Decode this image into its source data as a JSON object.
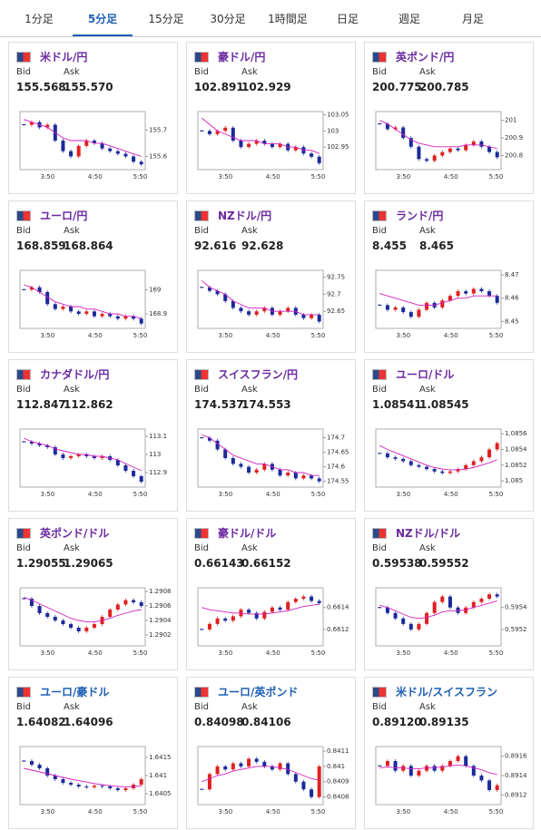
{
  "tabs": [
    "1分足",
    "5分足",
    "15分足",
    "30分足",
    "1時間足",
    "日足",
    "週足",
    "月足"
  ],
  "bid_label": "Bid",
  "ask_label": "Ask",
  "x_labels": [
    "3:50",
    "4:50",
    "5:50"
  ],
  "cards": [
    {
      "pair": "米ドル/円",
      "bid": "155.568",
      "ask": "155.570",
      "yticks": [
        155.6,
        155.7
      ],
      "ylim": [
        155.55,
        155.77
      ],
      "closes": [
        155.72,
        155.73,
        155.71,
        155.72,
        155.66,
        155.62,
        155.6,
        155.64,
        155.66,
        155.65,
        155.63,
        155.62,
        155.61,
        155.6,
        155.58,
        155.57
      ],
      "ma": [
        155.74,
        155.73,
        155.72,
        155.71,
        155.69,
        155.67,
        155.66,
        155.66,
        155.66,
        155.65,
        155.65,
        155.64,
        155.63,
        155.62,
        155.61,
        155.6
      ]
    },
    {
      "pair": "豪ドル/円",
      "bid": "102.891",
      "ask": "102.929",
      "yticks": [
        102.95,
        103,
        103.05
      ],
      "ylim": [
        102.88,
        103.06
      ],
      "closes": [
        103,
        102.99,
        103,
        103.01,
        102.97,
        102.95,
        102.96,
        102.97,
        102.96,
        102.95,
        102.96,
        102.94,
        102.95,
        102.93,
        102.92,
        102.9
      ],
      "ma": [
        103.04,
        103.02,
        103,
        102.99,
        102.98,
        102.97,
        102.97,
        102.97,
        102.96,
        102.96,
        102.96,
        102.95,
        102.95,
        102.94,
        102.94,
        102.93
      ]
    },
    {
      "pair": "英ポンド/円",
      "bid": "200.775",
      "ask": "200.785",
      "yticks": [
        200.8,
        200.9,
        201
      ],
      "ylim": [
        200.72,
        201.05
      ],
      "closes": [
        200.98,
        200.95,
        200.96,
        200.9,
        200.85,
        200.78,
        200.77,
        200.8,
        200.82,
        200.84,
        200.83,
        200.86,
        200.88,
        200.85,
        200.82,
        200.79
      ],
      "ma": [
        201,
        200.98,
        200.95,
        200.92,
        200.89,
        200.87,
        200.86,
        200.85,
        200.85,
        200.85,
        200.85,
        200.86,
        200.86,
        200.86,
        200.85,
        200.84
      ]
    },
    {
      "pair": "ユーロ/円",
      "bid": "168.859",
      "ask": "168.864",
      "yticks": [
        168.9,
        169
      ],
      "ylim": [
        168.84,
        169.08
      ],
      "closes": [
        169,
        169.01,
        168.99,
        168.94,
        168.92,
        168.93,
        168.91,
        168.9,
        168.91,
        168.89,
        168.9,
        168.89,
        168.88,
        168.89,
        168.88,
        168.86
      ],
      "ma": [
        169.02,
        169.01,
        168.99,
        168.97,
        168.95,
        168.94,
        168.93,
        168.93,
        168.92,
        168.92,
        168.91,
        168.9,
        168.9,
        168.89,
        168.89,
        168.88
      ]
    },
    {
      "pair": "NZドル/円",
      "bid": "92.616",
      "ask": "92.628",
      "yticks": [
        92.65,
        92.7,
        92.75
      ],
      "ylim": [
        92.6,
        92.77
      ],
      "closes": [
        92.72,
        92.71,
        92.7,
        92.68,
        92.66,
        92.65,
        92.64,
        92.65,
        92.66,
        92.64,
        92.65,
        92.66,
        92.64,
        92.63,
        92.64,
        92.62
      ],
      "ma": [
        92.74,
        92.72,
        92.71,
        92.7,
        92.68,
        92.67,
        92.66,
        92.66,
        92.66,
        92.65,
        92.65,
        92.65,
        92.65,
        92.64,
        92.64,
        92.64
      ]
    },
    {
      "pair": "ランド/円",
      "bid": "8.455",
      "ask": "8.465",
      "yticks": [
        8.45,
        8.46,
        8.47
      ],
      "ylim": [
        8.447,
        8.472
      ],
      "closes": [
        8.457,
        8.455,
        8.456,
        8.454,
        8.452,
        8.455,
        8.458,
        8.456,
        8.459,
        8.461,
        8.463,
        8.462,
        8.464,
        8.463,
        8.461,
        8.458
      ],
      "ma": [
        8.462,
        8.461,
        8.46,
        8.459,
        8.458,
        8.457,
        8.457,
        8.457,
        8.458,
        8.459,
        8.46,
        8.46,
        8.461,
        8.461,
        8.461,
        8.461
      ]
    },
    {
      "pair": "カナダドル/円",
      "bid": "112.847",
      "ask": "112.862",
      "yticks": [
        112.9,
        113,
        113.1
      ],
      "ylim": [
        112.82,
        113.14
      ],
      "closes": [
        113.07,
        113.06,
        113.05,
        113.04,
        113,
        112.98,
        112.99,
        113,
        112.99,
        112.98,
        112.99,
        112.97,
        112.94,
        112.91,
        112.88,
        112.85
      ],
      "ma": [
        113.09,
        113.07,
        113.06,
        113.05,
        113.03,
        113.02,
        113.01,
        113,
        113,
        112.99,
        112.99,
        112.98,
        112.97,
        112.95,
        112.93,
        112.91
      ]
    },
    {
      "pair": "スイスフラン/円",
      "bid": "174.537",
      "ask": "174.553",
      "yticks": [
        174.55,
        174.6,
        174.65,
        174.7
      ],
      "ylim": [
        174.53,
        174.73
      ],
      "closes": [
        174.7,
        174.69,
        174.66,
        174.63,
        174.61,
        174.6,
        174.58,
        174.59,
        174.61,
        174.59,
        174.57,
        174.58,
        174.56,
        174.57,
        174.56,
        174.55
      ],
      "ma": [
        174.71,
        174.7,
        174.68,
        174.66,
        174.64,
        174.63,
        174.62,
        174.61,
        174.61,
        174.6,
        174.59,
        174.59,
        174.58,
        174.58,
        174.57,
        174.57
      ]
    },
    {
      "pair": "ユーロ/ドル",
      "bid": "1.08541",
      "ask": "1.08545",
      "yticks": [
        1.085,
        1.0852,
        1.0854,
        1.0856
      ],
      "ylim": [
        1.08492,
        1.08566
      ],
      "closes": [
        1.08535,
        1.0853,
        1.08528,
        1.08525,
        1.0852,
        1.08518,
        1.08515,
        1.08512,
        1.0851,
        1.08512,
        1.08515,
        1.0852,
        1.08525,
        1.0853,
        1.0854,
        1.08548
      ],
      "ma": [
        1.08545,
        1.0854,
        1.08536,
        1.08532,
        1.08528,
        1.08524,
        1.0852,
        1.08517,
        1.08515,
        1.08514,
        1.08514,
        1.08515,
        1.08517,
        1.0852,
        1.08523,
        1.08527
      ]
    },
    {
      "pair": "英ポンド/ドル",
      "bid": "1.29055",
      "ask": "1.29065",
      "yticks": [
        1.2902,
        1.2904,
        1.2906,
        1.2908
      ],
      "ylim": [
        1.29005,
        1.29085
      ],
      "closes": [
        1.2907,
        1.2906,
        1.2905,
        1.29045,
        1.2904,
        1.29035,
        1.2903,
        1.29025,
        1.2903,
        1.29035,
        1.29045,
        1.29055,
        1.29062,
        1.29068,
        1.29065,
        1.2906
      ],
      "ma": [
        1.29072,
        1.29068,
        1.29063,
        1.29058,
        1.29053,
        1.29048,
        1.29043,
        1.2904,
        1.29038,
        1.29038,
        1.2904,
        1.29043,
        1.29047,
        1.2905,
        1.29053,
        1.29055
      ]
    },
    {
      "pair": "豪ドル/ドル",
      "bid": "0.66143",
      "ask": "0.66152",
      "yticks": [
        0.6612,
        0.6614
      ],
      "ylim": [
        0.66105,
        0.66158
      ],
      "closes": [
        0.6612,
        0.66125,
        0.6613,
        0.66128,
        0.66132,
        0.66138,
        0.66135,
        0.6613,
        0.66136,
        0.6614,
        0.66138,
        0.66145,
        0.66148,
        0.6615,
        0.66146,
        0.66144
      ],
      "ma": [
        0.6614,
        0.66138,
        0.66137,
        0.66136,
        0.66135,
        0.66135,
        0.66134,
        0.66134,
        0.66134,
        0.66135,
        0.66136,
        0.66137,
        0.66139,
        0.66141,
        0.66142,
        0.66143
      ]
    },
    {
      "pair": "NZドル/ドル",
      "bid": "0.59538",
      "ask": "0.59552",
      "yticks": [
        0.5952,
        0.5954
      ],
      "ylim": [
        0.59505,
        0.59558
      ],
      "closes": [
        0.5954,
        0.59535,
        0.5953,
        0.59525,
        0.5952,
        0.59525,
        0.59535,
        0.59545,
        0.5955,
        0.5954,
        0.59535,
        0.5954,
        0.59545,
        0.59548,
        0.59552,
        0.5955
      ],
      "ma": [
        0.59542,
        0.5954,
        0.59537,
        0.59534,
        0.59531,
        0.5953,
        0.59531,
        0.59533,
        0.59536,
        0.59537,
        0.59537,
        0.59538,
        0.5954,
        0.59542,
        0.59544,
        0.59546
      ]
    },
    {
      "pair": "ユーロ/豪ドル",
      "bid": "1.64082",
      "ask": "1.64096",
      "yticks": [
        1.6405,
        1.641,
        1.6415
      ],
      "ylim": [
        1.6402,
        1.6418
      ],
      "closes": [
        1.6414,
        1.6413,
        1.6412,
        1.641,
        1.6409,
        1.6408,
        1.64075,
        1.6407,
        1.64068,
        1.64072,
        1.6407,
        1.64065,
        1.6406,
        1.64065,
        1.64075,
        1.6409
      ],
      "ma": [
        1.6412,
        1.64115,
        1.6411,
        1.64105,
        1.641,
        1.64095,
        1.6409,
        1.64086,
        1.64082,
        1.64078,
        1.64075,
        1.64072,
        1.6407,
        1.64069,
        1.6407,
        1.64072
      ]
    },
    {
      "pair": "ユーロ/英ポンド",
      "bid": "0.84098",
      "ask": "0.84106",
      "yticks": [
        0.8408,
        0.8409,
        0.841,
        0.8411
      ],
      "ylim": [
        0.84075,
        0.84113
      ],
      "closes": [
        0.84085,
        0.84095,
        0.841,
        0.84098,
        0.84102,
        0.841,
        0.84105,
        0.84103,
        0.841,
        0.84098,
        0.84102,
        0.84095,
        0.8409,
        0.84085,
        0.8408,
        0.841
      ],
      "ma": [
        0.8409,
        0.84092,
        0.84094,
        0.84095,
        0.84097,
        0.84098,
        0.84099,
        0.841,
        0.841,
        0.841,
        0.84099,
        0.84098,
        0.84096,
        0.84094,
        0.84092,
        0.84091
      ]
    },
    {
      "pair": "米ドル/スイスフラン",
      "bid": "0.89120",
      "ask": "0.89135",
      "yticks": [
        0.8912,
        0.8914,
        0.8916
      ],
      "ylim": [
        0.8911,
        0.8917
      ],
      "closes": [
        0.8915,
        0.89155,
        0.89145,
        0.8915,
        0.8914,
        0.89145,
        0.8915,
        0.89145,
        0.8915,
        0.89155,
        0.8916,
        0.8915,
        0.8914,
        0.89135,
        0.89125,
        0.8913
      ],
      "ma": [
        0.89148,
        0.89149,
        0.89148,
        0.89148,
        0.89147,
        0.89147,
        0.89148,
        0.89148,
        0.89149,
        0.8915,
        0.89151,
        0.8915,
        0.89148,
        0.89146,
        0.89143,
        0.89141
      ]
    }
  ]
}
